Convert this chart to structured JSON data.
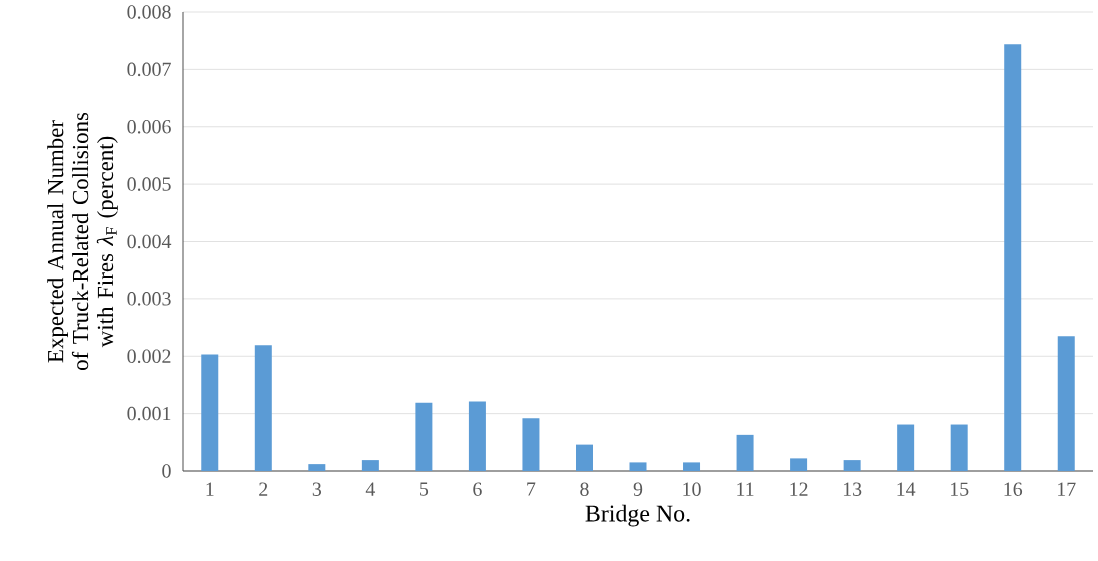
{
  "chart_data": {
    "type": "bar",
    "xlabel": "Bridge No.",
    "ylabel": "Expected Annual Number of Truck-Related Collisions with Fires *λ*$_{F}$ (percent)",
    "categories": [
      "1",
      "2",
      "3",
      "4",
      "5",
      "6",
      "7",
      "8",
      "9",
      "10",
      "11",
      "12",
      "13",
      "14",
      "15",
      "16",
      "17"
    ],
    "values": [
      0.00203,
      0.00219,
      0.00012,
      0.00019,
      0.00119,
      0.00121,
      0.00092,
      0.00046,
      0.00015,
      0.00015,
      0.00063,
      0.00022,
      0.00019,
      0.00081,
      0.00081,
      0.00744,
      0.00235
    ],
    "color": "#5b9bd5",
    "ylim": [
      0,
      0.008
    ],
    "yticks": [
      0,
      0.001,
      0.002,
      0.003,
      0.004,
      0.005,
      0.006,
      0.007,
      0.008
    ],
    "grid": "y"
  }
}
